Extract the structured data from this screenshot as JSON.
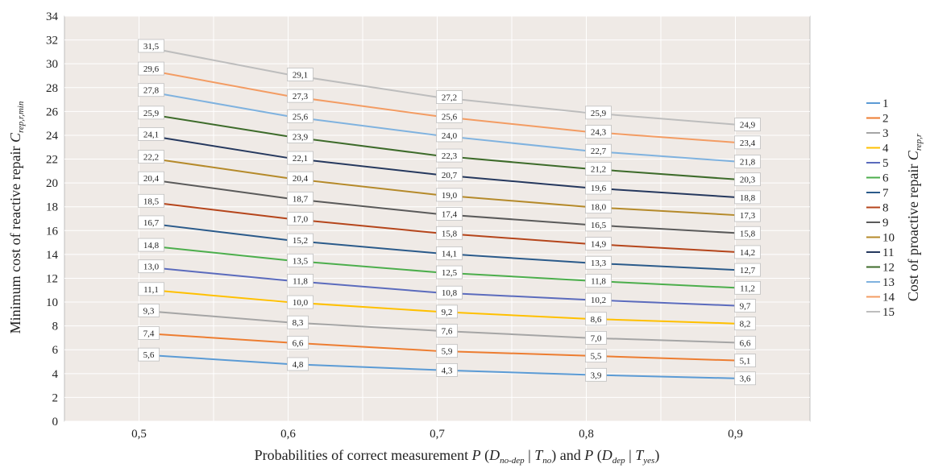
{
  "chart_data": {
    "type": "line",
    "x": [
      "0,5",
      "0,6",
      "0,7",
      "0,8",
      "0,9"
    ],
    "xvalues": [
      0.5,
      0.6,
      0.7,
      0.8,
      0.9
    ],
    "xlabel": {
      "prefix": "Probabilities of correct measurement ",
      "p1": "P",
      "paren1_open": " (",
      "d1": "D",
      "d1_sub": "no-dep",
      "bar1": " | ",
      "t1": "T",
      "t1_sub": "no",
      "paren1_close": ")",
      "and": " and ",
      "p2": "P",
      "paren2_open": " (",
      "d2": "D",
      "d2_sub": "dep",
      "bar2": " | ",
      "t2": "T",
      "t2_sub": "yes",
      "paren2_close": ")"
    },
    "ylabel": {
      "text": "Minimum cost of reactive repair ",
      "sym": "C",
      "sub": "rep,r,min"
    },
    "legend_title": {
      "text": "Cost of proactive repair ",
      "sym": "C",
      "sub": "rep,r"
    },
    "ylim": [
      0,
      34
    ],
    "yticks": [
      0,
      2,
      4,
      6,
      8,
      10,
      12,
      14,
      16,
      18,
      20,
      22,
      24,
      26,
      28,
      30,
      32,
      34
    ],
    "grid": true,
    "legend_placement": "right",
    "series": [
      {
        "name": "1",
        "color": "#5b9bd5",
        "values": [
          5.6,
          4.8,
          4.3,
          3.9,
          3.6
        ],
        "labels": [
          "5,6",
          "4,8",
          "4,3",
          "3,9",
          "3,6"
        ]
      },
      {
        "name": "2",
        "color": "#ed7d31",
        "values": [
          7.4,
          6.6,
          5.9,
          5.5,
          5.1
        ],
        "labels": [
          "7,4",
          "6,6",
          "5,9",
          "5,5",
          "5,1"
        ]
      },
      {
        "name": "3",
        "color": "#a5a5a5",
        "values": [
          9.3,
          8.3,
          7.6,
          7.0,
          6.6
        ],
        "labels": [
          "9,3",
          "8,3",
          "7,6",
          "7,0",
          "6,6"
        ]
      },
      {
        "name": "4",
        "color": "#ffc000",
        "values": [
          11.1,
          10.0,
          9.2,
          8.6,
          8.2
        ],
        "labels": [
          "11,1",
          "10,0",
          "9,2",
          "8,6",
          "8,2"
        ]
      },
      {
        "name": "5",
        "color": "#5b6bbd",
        "values": [
          13.0,
          11.8,
          10.8,
          10.2,
          9.7
        ],
        "labels": [
          "13,0",
          "11,8",
          "10,8",
          "10,2",
          "9,7"
        ]
      },
      {
        "name": "6",
        "color": "#4cae4c",
        "values": [
          14.8,
          13.5,
          12.5,
          11.8,
          11.2
        ],
        "labels": [
          "14,8",
          "13,5",
          "12,5",
          "11,8",
          "11,2"
        ]
      },
      {
        "name": "7",
        "color": "#2a5a8a",
        "values": [
          16.7,
          15.2,
          14.1,
          13.3,
          12.7
        ],
        "labels": [
          "16,7",
          "15,2",
          "14,1",
          "13,3",
          "12,7"
        ]
      },
      {
        "name": "8",
        "color": "#b5451b",
        "values": [
          18.5,
          17.0,
          15.8,
          14.9,
          14.2
        ],
        "labels": [
          "18,5",
          "17,0",
          "15,8",
          "14,9",
          "14,2"
        ]
      },
      {
        "name": "9",
        "color": "#5a5a5a",
        "values": [
          20.4,
          18.7,
          17.4,
          16.5,
          15.8
        ],
        "labels": [
          "20,4",
          "18,7",
          "17,4",
          "16,5",
          "15,8"
        ]
      },
      {
        "name": "10",
        "color": "#b58a2a",
        "values": [
          22.2,
          20.4,
          19.0,
          18.0,
          17.3
        ],
        "labels": [
          "22,2",
          "20,4",
          "19,0",
          "18,0",
          "17,3"
        ]
      },
      {
        "name": "11",
        "color": "#25385e",
        "values": [
          24.1,
          22.1,
          20.7,
          19.6,
          18.8
        ],
        "labels": [
          "24,1",
          "22,1",
          "20,7",
          "19,6",
          "18,8"
        ]
      },
      {
        "name": "12",
        "color": "#3d6b2a",
        "values": [
          25.9,
          23.9,
          22.3,
          21.2,
          20.3
        ],
        "labels": [
          "25,9",
          "23,9",
          "22,3",
          "21,2",
          "20,3"
        ]
      },
      {
        "name": "13",
        "color": "#7fb2df",
        "values": [
          27.8,
          25.6,
          24.0,
          22.7,
          21.8
        ],
        "labels": [
          "27,8",
          "25,6",
          "24,0",
          "22,7",
          "21,8"
        ]
      },
      {
        "name": "14",
        "color": "#f39c63",
        "values": [
          29.6,
          27.3,
          25.6,
          24.3,
          23.4
        ],
        "labels": [
          "29,6",
          "27,3",
          "25,6",
          "24,3",
          "23,4"
        ]
      },
      {
        "name": "15",
        "color": "#bdbdbd",
        "values": [
          31.5,
          29.1,
          27.2,
          25.9,
          24.9
        ],
        "labels": [
          "31,5",
          "29,1",
          "27,2",
          "25,9",
          "24,9"
        ]
      }
    ],
    "plot_background": "#efeae6",
    "grid_color": "#ffffff"
  }
}
